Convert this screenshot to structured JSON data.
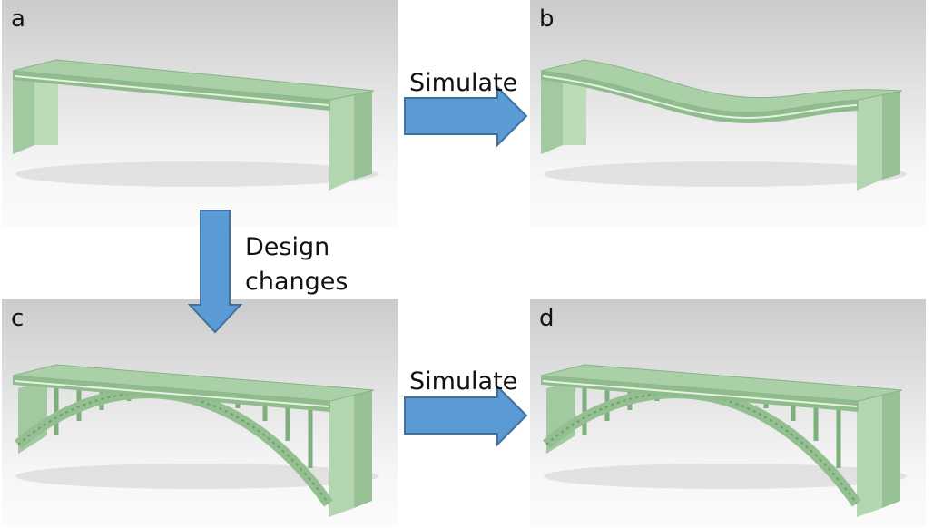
{
  "panels": [
    {
      "id": "a",
      "label": "a",
      "variant": "flat-beam"
    },
    {
      "id": "b",
      "label": "b",
      "variant": "deformed-beam"
    },
    {
      "id": "c",
      "label": "c",
      "variant": "arch-bridge"
    },
    {
      "id": "d",
      "label": "d",
      "variant": "arch-bridge"
    }
  ],
  "arrows": {
    "top": {
      "caption": "Simulate",
      "direction": "right"
    },
    "left": {
      "caption_line1": "Design",
      "caption_line2": "changes",
      "direction": "down"
    },
    "bottom": {
      "caption": "Simulate",
      "direction": "right"
    }
  },
  "colors": {
    "arrow_fill": "#5b9bd5",
    "arrow_stroke": "#41719c",
    "model_green": "#a9cfa6",
    "model_dark": "#7fae7d"
  }
}
